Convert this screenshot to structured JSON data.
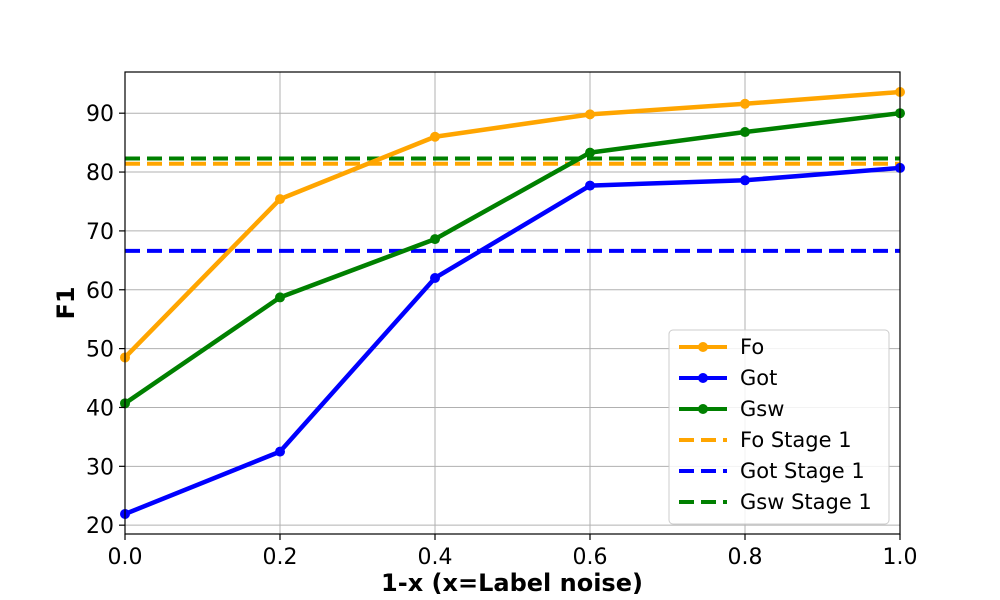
{
  "chart_data": {
    "type": "line",
    "title": "",
    "xlabel": "1-x (x=Label noise)",
    "ylabel": "F1",
    "xlim": [
      0.0,
      1.0
    ],
    "ylim": [
      18.5,
      97.0
    ],
    "x_ticks": [
      0.0,
      0.2,
      0.4,
      0.6,
      0.8,
      1.0
    ],
    "x_tick_labels": [
      "0.0",
      "0.2",
      "0.4",
      "0.6",
      "0.8",
      "1.0"
    ],
    "y_ticks": [
      20,
      30,
      40,
      50,
      60,
      70,
      80,
      90
    ],
    "y_tick_labels": [
      "20",
      "30",
      "40",
      "50",
      "60",
      "70",
      "80",
      "90"
    ],
    "grid": true,
    "legend_position": "lower-right",
    "x": [
      0.0,
      0.2,
      0.4,
      0.6,
      0.8,
      1.0
    ],
    "series": [
      {
        "name": "Fo",
        "color": "#ffa500",
        "style": "solid",
        "marker": "circle",
        "values": [
          48.5,
          75.4,
          86.0,
          89.8,
          91.6,
          93.6
        ]
      },
      {
        "name": "Got",
        "color": "#0000ff",
        "style": "solid",
        "marker": "circle",
        "values": [
          21.9,
          32.5,
          62.0,
          77.7,
          78.6,
          80.7
        ]
      },
      {
        "name": "Gsw",
        "color": "#008000",
        "style": "solid",
        "marker": "circle",
        "values": [
          40.7,
          58.7,
          68.6,
          83.3,
          86.8,
          90.0
        ]
      }
    ],
    "reference_lines": [
      {
        "name": "Fo Stage 1",
        "color": "#ffa500",
        "style": "dashed",
        "y": 81.4
      },
      {
        "name": "Got Stage 1",
        "color": "#0000ff",
        "style": "dashed",
        "y": 66.6
      },
      {
        "name": "Gsw Stage 1",
        "color": "#008000",
        "style": "dashed",
        "y": 82.3
      }
    ]
  }
}
